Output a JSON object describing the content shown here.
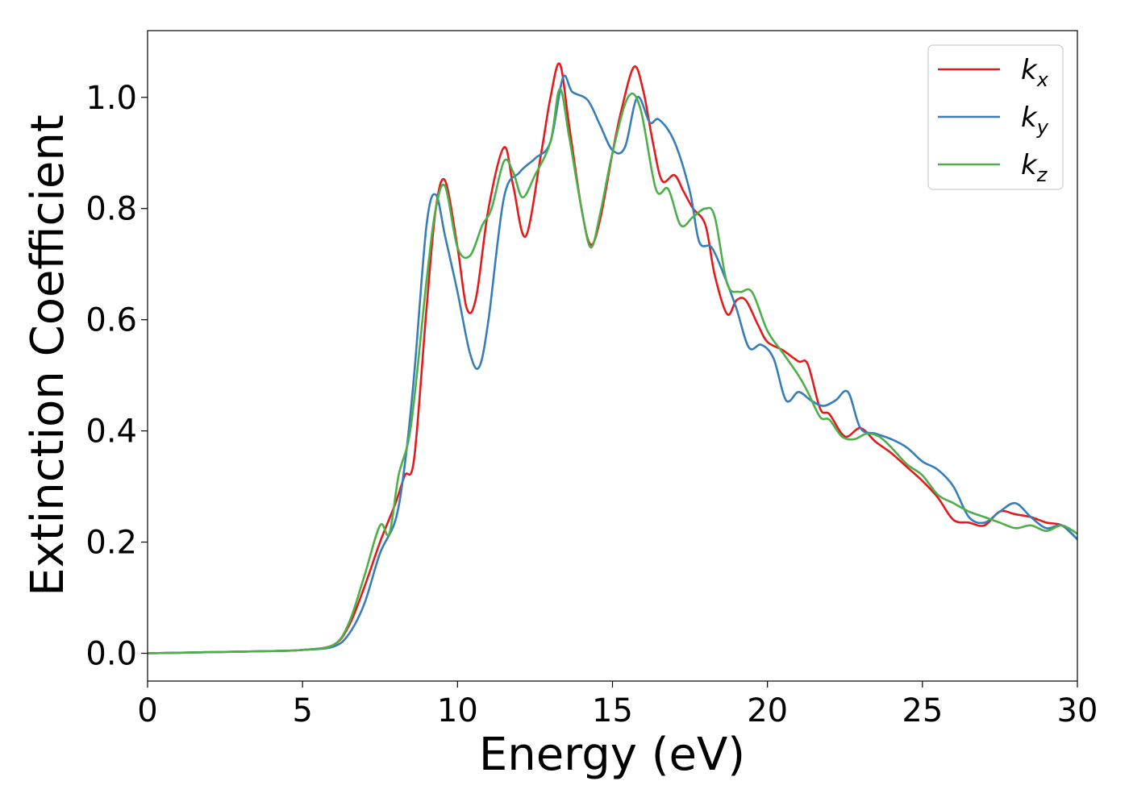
{
  "chart_data": {
    "type": "line",
    "xlabel": "Energy (eV)",
    "ylabel": "Extinction Coefficient",
    "xlim": [
      0,
      30
    ],
    "ylim": [
      -0.05,
      1.12
    ],
    "xticks": [
      0,
      5,
      10,
      15,
      20,
      25,
      30
    ],
    "yticks": [
      0.0,
      0.2,
      0.4,
      0.6,
      0.8,
      1.0
    ],
    "xtick_labels": [
      "0",
      "5",
      "10",
      "15",
      "20",
      "25",
      "30"
    ],
    "ytick_labels": [
      "0.0",
      "0.2",
      "0.4",
      "0.6",
      "0.8",
      "1.0"
    ],
    "grid": false,
    "legend_position": "top-right",
    "series": [
      {
        "name": "k",
        "subscript": "x",
        "color": "#e41a1c",
        "points": [
          [
            0,
            0
          ],
          [
            2,
            0.002
          ],
          [
            4,
            0.004
          ],
          [
            5,
            0.006
          ],
          [
            6,
            0.015
          ],
          [
            6.5,
            0.05
          ],
          [
            7,
            0.12
          ],
          [
            7.5,
            0.2
          ],
          [
            8,
            0.27
          ],
          [
            8.3,
            0.32
          ],
          [
            8.6,
            0.35
          ],
          [
            9,
            0.62
          ],
          [
            9.3,
            0.8
          ],
          [
            9.6,
            0.85
          ],
          [
            10,
            0.73
          ],
          [
            10.3,
            0.62
          ],
          [
            10.6,
            0.64
          ],
          [
            11,
            0.8
          ],
          [
            11.5,
            0.91
          ],
          [
            11.8,
            0.84
          ],
          [
            12.2,
            0.75
          ],
          [
            12.7,
            0.9
          ],
          [
            13,
            1.0
          ],
          [
            13.3,
            1.06
          ],
          [
            13.6,
            0.95
          ],
          [
            14,
            0.8
          ],
          [
            14.3,
            0.735
          ],
          [
            14.6,
            0.78
          ],
          [
            15,
            0.9
          ],
          [
            15.3,
            0.98
          ],
          [
            15.7,
            1.055
          ],
          [
            16,
            1.01
          ],
          [
            16.3,
            0.92
          ],
          [
            16.6,
            0.85
          ],
          [
            17,
            0.86
          ],
          [
            17.3,
            0.83
          ],
          [
            17.6,
            0.8
          ],
          [
            18,
            0.77
          ],
          [
            18.3,
            0.68
          ],
          [
            18.7,
            0.61
          ],
          [
            19,
            0.635
          ],
          [
            19.3,
            0.635
          ],
          [
            19.7,
            0.59
          ],
          [
            20,
            0.56
          ],
          [
            20.5,
            0.545
          ],
          [
            21,
            0.525
          ],
          [
            21.3,
            0.52
          ],
          [
            21.7,
            0.44
          ],
          [
            22,
            0.43
          ],
          [
            22.5,
            0.39
          ],
          [
            23,
            0.405
          ],
          [
            23.5,
            0.38
          ],
          [
            24,
            0.36
          ],
          [
            24.5,
            0.335
          ],
          [
            25,
            0.31
          ],
          [
            25.5,
            0.28
          ],
          [
            26,
            0.24
          ],
          [
            26.5,
            0.235
          ],
          [
            27,
            0.23
          ],
          [
            27.5,
            0.255
          ],
          [
            28,
            0.25
          ],
          [
            28.5,
            0.245
          ],
          [
            29,
            0.235
          ],
          [
            29.5,
            0.23
          ],
          [
            30,
            0.205
          ]
        ]
      },
      {
        "name": "k",
        "subscript": "y",
        "color": "#377eb8",
        "points": [
          [
            0,
            0
          ],
          [
            2,
            0.002
          ],
          [
            4,
            0.004
          ],
          [
            5,
            0.006
          ],
          [
            6,
            0.012
          ],
          [
            6.5,
            0.035
          ],
          [
            7,
            0.09
          ],
          [
            7.5,
            0.18
          ],
          [
            8,
            0.24
          ],
          [
            8.3,
            0.34
          ],
          [
            8.6,
            0.5
          ],
          [
            9,
            0.77
          ],
          [
            9.3,
            0.825
          ],
          [
            9.6,
            0.75
          ],
          [
            10,
            0.65
          ],
          [
            10.4,
            0.54
          ],
          [
            10.7,
            0.515
          ],
          [
            11,
            0.6
          ],
          [
            11.5,
            0.82
          ],
          [
            12,
            0.865
          ],
          [
            12.5,
            0.89
          ],
          [
            13,
            0.92
          ],
          [
            13.4,
            1.035
          ],
          [
            13.7,
            1.01
          ],
          [
            14.2,
            0.995
          ],
          [
            14.6,
            0.95
          ],
          [
            15,
            0.905
          ],
          [
            15.4,
            0.91
          ],
          [
            15.8,
            1.0
          ],
          [
            16.2,
            0.955
          ],
          [
            16.5,
            0.96
          ],
          [
            17,
            0.92
          ],
          [
            17.5,
            0.83
          ],
          [
            17.8,
            0.74
          ],
          [
            18.2,
            0.73
          ],
          [
            18.6,
            0.68
          ],
          [
            19,
            0.62
          ],
          [
            19.4,
            0.55
          ],
          [
            19.8,
            0.555
          ],
          [
            20.2,
            0.53
          ],
          [
            20.6,
            0.455
          ],
          [
            21,
            0.47
          ],
          [
            21.4,
            0.455
          ],
          [
            21.8,
            0.445
          ],
          [
            22.2,
            0.455
          ],
          [
            22.6,
            0.47
          ],
          [
            23,
            0.405
          ],
          [
            23.5,
            0.395
          ],
          [
            24,
            0.385
          ],
          [
            24.5,
            0.37
          ],
          [
            25,
            0.345
          ],
          [
            25.5,
            0.33
          ],
          [
            26,
            0.3
          ],
          [
            26.5,
            0.245
          ],
          [
            27,
            0.235
          ],
          [
            27.5,
            0.255
          ],
          [
            28,
            0.27
          ],
          [
            28.5,
            0.245
          ],
          [
            29,
            0.225
          ],
          [
            29.5,
            0.23
          ],
          [
            30,
            0.205
          ]
        ]
      },
      {
        "name": "k",
        "subscript": "z",
        "color": "#4daf4a",
        "points": [
          [
            0,
            0
          ],
          [
            2,
            0.002
          ],
          [
            4,
            0.004
          ],
          [
            5,
            0.006
          ],
          [
            6,
            0.015
          ],
          [
            6.5,
            0.055
          ],
          [
            7,
            0.14
          ],
          [
            7.5,
            0.23
          ],
          [
            7.8,
            0.215
          ],
          [
            8.1,
            0.32
          ],
          [
            8.5,
            0.41
          ],
          [
            9,
            0.67
          ],
          [
            9.3,
            0.8
          ],
          [
            9.6,
            0.84
          ],
          [
            10,
            0.73
          ],
          [
            10.4,
            0.715
          ],
          [
            10.8,
            0.77
          ],
          [
            11.1,
            0.8
          ],
          [
            11.5,
            0.885
          ],
          [
            11.8,
            0.865
          ],
          [
            12.1,
            0.82
          ],
          [
            12.5,
            0.86
          ],
          [
            13,
            0.92
          ],
          [
            13.3,
            1.015
          ],
          [
            13.6,
            0.93
          ],
          [
            14,
            0.8
          ],
          [
            14.3,
            0.73
          ],
          [
            14.6,
            0.79
          ],
          [
            15,
            0.9
          ],
          [
            15.5,
            1.0
          ],
          [
            15.9,
            0.98
          ],
          [
            16.4,
            0.835
          ],
          [
            16.8,
            0.835
          ],
          [
            17.2,
            0.77
          ],
          [
            17.6,
            0.785
          ],
          [
            18,
            0.8
          ],
          [
            18.3,
            0.785
          ],
          [
            18.7,
            0.665
          ],
          [
            19.1,
            0.65
          ],
          [
            19.5,
            0.65
          ],
          [
            20,
            0.58
          ],
          [
            20.5,
            0.54
          ],
          [
            21,
            0.5
          ],
          [
            21.3,
            0.47
          ],
          [
            21.7,
            0.425
          ],
          [
            22,
            0.42
          ],
          [
            22.4,
            0.39
          ],
          [
            22.8,
            0.385
          ],
          [
            23.2,
            0.395
          ],
          [
            23.6,
            0.39
          ],
          [
            24,
            0.37
          ],
          [
            24.5,
            0.34
          ],
          [
            25,
            0.32
          ],
          [
            25.5,
            0.285
          ],
          [
            26,
            0.27
          ],
          [
            26.5,
            0.255
          ],
          [
            27,
            0.245
          ],
          [
            27.5,
            0.235
          ],
          [
            28,
            0.225
          ],
          [
            28.5,
            0.23
          ],
          [
            29,
            0.22
          ],
          [
            29.5,
            0.23
          ],
          [
            30,
            0.215
          ]
        ]
      }
    ]
  }
}
